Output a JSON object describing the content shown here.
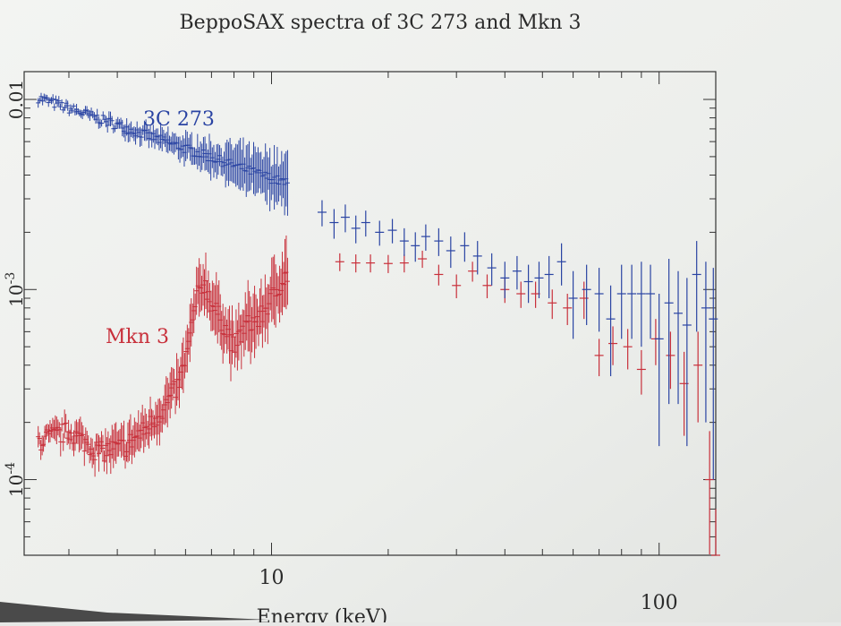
{
  "chart_data": {
    "type": "scatter",
    "title": "BeppoSAX spectra of 3C 273 and Mkn 3",
    "xlabel": "Energy (keV)",
    "x_scale": "log",
    "y_scale": "log",
    "xlim": [
      2.3,
      140
    ],
    "ylim": [
      4e-05,
      0.014
    ],
    "x_ticks": [
      {
        "value": 10,
        "label": "10"
      },
      {
        "value": 100,
        "label": "100"
      }
    ],
    "y_ticks": [
      {
        "value": 0.01,
        "label": "0.01"
      },
      {
        "value": 0.001,
        "label": "10^-3"
      },
      {
        "value": 0.0001,
        "label": "10^-4"
      }
    ],
    "grid": false,
    "series": [
      {
        "name": "3C 273",
        "color": "#2a44a3",
        "low_energy": {
          "x_start": 2.5,
          "x_end": 11.0,
          "y_start": 0.0102,
          "y_end": 0.0036
        },
        "points": [
          {
            "x": 13.5,
            "y": 0.00255,
            "err": 0.0004
          },
          {
            "x": 14.5,
            "y": 0.00225,
            "err": 0.0004
          },
          {
            "x": 15.5,
            "y": 0.0024,
            "err": 0.0004
          },
          {
            "x": 16.5,
            "y": 0.0021,
            "err": 0.00035
          },
          {
            "x": 17.5,
            "y": 0.00225,
            "err": 0.00035
          },
          {
            "x": 19.0,
            "y": 0.002,
            "err": 0.0003
          },
          {
            "x": 20.5,
            "y": 0.00205,
            "err": 0.0003
          },
          {
            "x": 22.0,
            "y": 0.0018,
            "err": 0.0003
          },
          {
            "x": 23.5,
            "y": 0.0017,
            "err": 0.0003
          },
          {
            "x": 25.0,
            "y": 0.0019,
            "err": 0.0003
          },
          {
            "x": 27.0,
            "y": 0.0018,
            "err": 0.0003
          },
          {
            "x": 29.0,
            "y": 0.0016,
            "err": 0.0003
          },
          {
            "x": 31.5,
            "y": 0.0017,
            "err": 0.0003
          },
          {
            "x": 34.0,
            "y": 0.0015,
            "err": 0.0003
          },
          {
            "x": 37.0,
            "y": 0.0013,
            "err": 0.00025
          },
          {
            "x": 40.0,
            "y": 0.00115,
            "err": 0.00025
          },
          {
            "x": 43.0,
            "y": 0.00125,
            "err": 0.00025
          },
          {
            "x": 46.0,
            "y": 0.0011,
            "err": 0.00025
          },
          {
            "x": 49.0,
            "y": 0.00115,
            "err": 0.00025
          },
          {
            "x": 52.0,
            "y": 0.0012,
            "err": 0.0003
          },
          {
            "x": 56.0,
            "y": 0.0014,
            "err": 0.00035
          },
          {
            "x": 60.0,
            "y": 0.0009,
            "err": 0.00035
          },
          {
            "x": 65.0,
            "y": 0.001,
            "err": 0.00035
          },
          {
            "x": 70.0,
            "y": 0.00095,
            "err": 0.00035
          },
          {
            "x": 75.0,
            "y": 0.0007,
            "err": 0.00035
          },
          {
            "x": 80.0,
            "y": 0.00095,
            "err": 0.0004
          },
          {
            "x": 85.0,
            "y": 0.00095,
            "err": 0.0004
          },
          {
            "x": 90.0,
            "y": 0.00095,
            "err": 0.00045
          },
          {
            "x": 95.0,
            "y": 0.00095,
            "err": 0.0004
          },
          {
            "x": 100.0,
            "y": 0.00055,
            "err": 0.0004
          },
          {
            "x": 106.0,
            "y": 0.00085,
            "err": 0.0006
          },
          {
            "x": 112.0,
            "y": 0.00075,
            "err": 0.0005
          },
          {
            "x": 118.0,
            "y": 0.00065,
            "err": 0.0005
          },
          {
            "x": 125.0,
            "y": 0.0012,
            "err": 0.0006
          },
          {
            "x": 132.0,
            "y": 0.0008,
            "err": 0.0006
          },
          {
            "x": 138.0,
            "y": 0.0007,
            "err": 0.0006
          }
        ]
      },
      {
        "name": "Mkn 3",
        "color": "#c8303b",
        "low_energy": [
          [
            2.5,
            0.00016
          ],
          [
            3.0,
            0.00018
          ],
          [
            3.6,
            0.00014
          ],
          [
            4.2,
            0.00015
          ],
          [
            4.8,
            0.00019
          ],
          [
            5.3,
            0.00024
          ],
          [
            5.8,
            0.00033
          ],
          [
            6.1,
            0.0005
          ],
          [
            6.4,
            0.0009
          ],
          [
            6.7,
            0.0011
          ],
          [
            7.0,
            0.00085
          ],
          [
            7.4,
            0.0007
          ],
          [
            8.0,
            0.0005
          ],
          [
            8.6,
            0.00065
          ],
          [
            9.3,
            0.0007
          ],
          [
            10.0,
            0.0009
          ],
          [
            10.6,
            0.0011
          ],
          [
            11.0,
            0.0012
          ]
        ],
        "points": [
          {
            "x": 15.0,
            "y": 0.0014,
            "err": 0.00015
          },
          {
            "x": 16.5,
            "y": 0.00138,
            "err": 0.00015
          },
          {
            "x": 18.0,
            "y": 0.00138,
            "err": 0.00015
          },
          {
            "x": 20.0,
            "y": 0.00137,
            "err": 0.00015
          },
          {
            "x": 22.0,
            "y": 0.00138,
            "err": 0.00015
          },
          {
            "x": 24.5,
            "y": 0.00145,
            "err": 0.00015
          },
          {
            "x": 27.0,
            "y": 0.0012,
            "err": 0.00015
          },
          {
            "x": 30.0,
            "y": 0.00105,
            "err": 0.00015
          },
          {
            "x": 33.0,
            "y": 0.00125,
            "err": 0.00015
          },
          {
            "x": 36.0,
            "y": 0.00105,
            "err": 0.00015
          },
          {
            "x": 40.0,
            "y": 0.001,
            "err": 0.00015
          },
          {
            "x": 44.0,
            "y": 0.00095,
            "err": 0.00015
          },
          {
            "x": 48.0,
            "y": 0.00095,
            "err": 0.00015
          },
          {
            "x": 53.0,
            "y": 0.00085,
            "err": 0.00015
          },
          {
            "x": 58.0,
            "y": 0.0008,
            "err": 0.00015
          },
          {
            "x": 64.0,
            "y": 0.0009,
            "err": 0.0002
          },
          {
            "x": 70.0,
            "y": 0.00045,
            "err": 0.0001
          },
          {
            "x": 76.0,
            "y": 0.00052,
            "err": 0.00012
          },
          {
            "x": 83.0,
            "y": 0.0005,
            "err": 0.00012
          },
          {
            "x": 90.0,
            "y": 0.00038,
            "err": 0.0001
          },
          {
            "x": 98.0,
            "y": 0.00055,
            "err": 0.00015
          },
          {
            "x": 107.0,
            "y": 0.00045,
            "err": 0.00015
          },
          {
            "x": 116.0,
            "y": 0.00032,
            "err": 0.00015
          },
          {
            "x": 126.0,
            "y": 0.0004,
            "err": 0.0002
          },
          {
            "x": 135.0,
            "y": 0.0001,
            "err": 8e-05
          },
          {
            "x": 140.0,
            "y": 4e-05,
            "err": 3e-05
          }
        ]
      }
    ],
    "annotations": [
      {
        "text": "3C 273",
        "series": "3C 273"
      },
      {
        "text": "Mkn 3",
        "series": "Mkn 3"
      }
    ]
  }
}
